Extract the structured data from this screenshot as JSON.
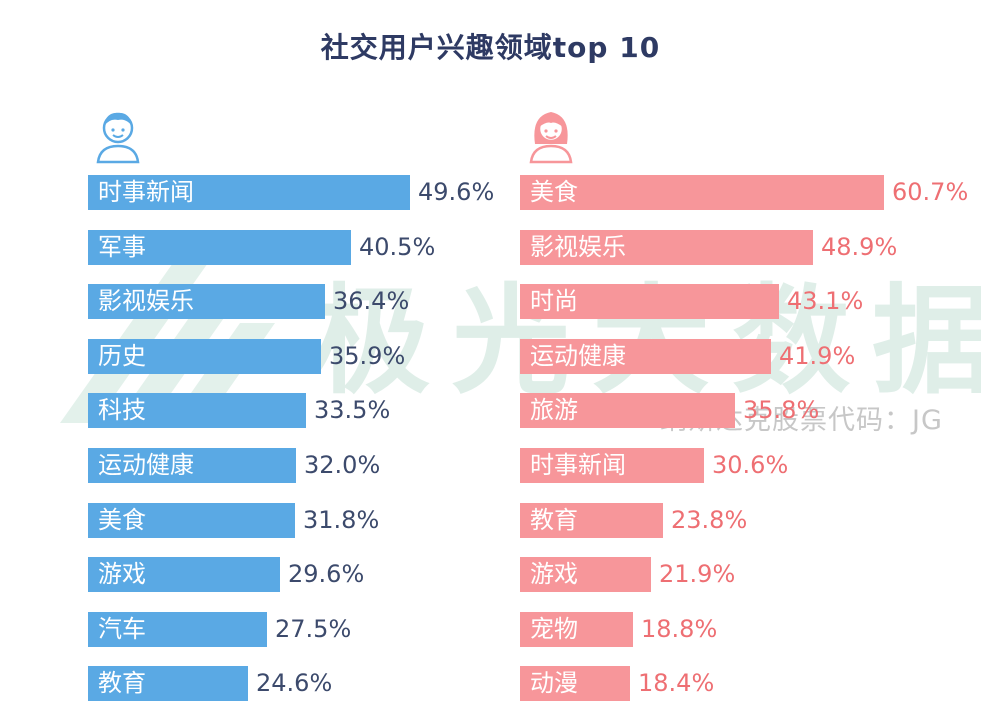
{
  "title": "社交用户兴趣领域top 10",
  "watermark": {
    "brand": "极光大数据",
    "subtitle": "纳斯达克股票代码：JG"
  },
  "colors": {
    "male": "#5aa9e4",
    "female": "#f7969a",
    "watermark": "#dfeee8"
  },
  "chart_data": [
    {
      "type": "bar",
      "name": "male",
      "icon": "male-user-icon",
      "unit": "%",
      "categories": [
        "时事新闻",
        "军事",
        "影视娱乐",
        "历史",
        "科技",
        "运动健康",
        "美食",
        "游戏",
        "汽车",
        "教育"
      ],
      "values": [
        49.6,
        40.5,
        36.4,
        35.9,
        33.5,
        32.0,
        31.8,
        29.6,
        27.5,
        24.6
      ],
      "labels": [
        "49.6%",
        "40.5%",
        "36.4%",
        "35.9%",
        "33.5%",
        "32.0%",
        "31.8%",
        "29.6%",
        "27.5%",
        "24.6%"
      ]
    },
    {
      "type": "bar",
      "name": "female",
      "icon": "female-user-icon",
      "unit": "%",
      "categories": [
        "美食",
        "影视娱乐",
        "时尚",
        "运动健康",
        "旅游",
        "时事新闻",
        "教育",
        "游戏",
        "宠物",
        "动漫"
      ],
      "values": [
        60.7,
        48.9,
        43.1,
        41.9,
        35.8,
        30.6,
        23.8,
        21.9,
        18.8,
        18.4
      ],
      "labels": [
        "60.7%",
        "48.9%",
        "43.1%",
        "41.9%",
        "35.8%",
        "30.6%",
        "23.8%",
        "21.9%",
        "18.8%",
        "18.4%"
      ]
    }
  ]
}
